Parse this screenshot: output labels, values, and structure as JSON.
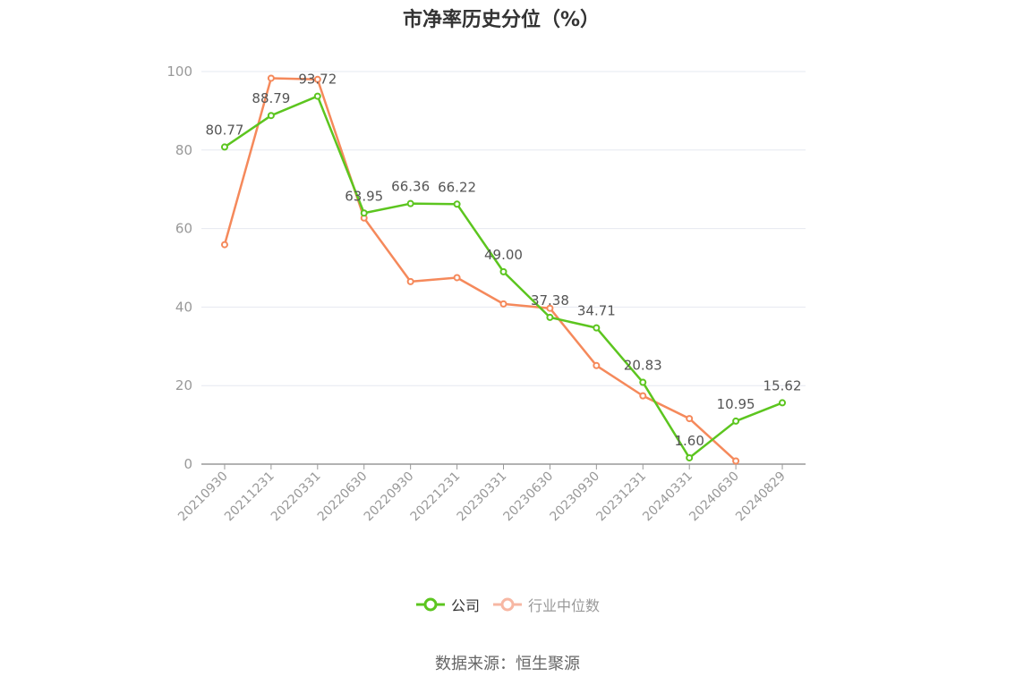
{
  "title": "市净率历史分位（%）",
  "source_text": "数据来源：恒生聚源",
  "legend": {
    "company": "公司",
    "industry": "行业中位数"
  },
  "colors": {
    "company": "#5cc51f",
    "industry": "#f5895b",
    "industry_legend": "#f7b7a3",
    "grid": "#e6e8f0",
    "axis": "#999999"
  },
  "chart_data": {
    "type": "line",
    "title": "市净率历史分位（%）",
    "xlabel": "",
    "ylabel": "",
    "ylim": [
      0,
      100
    ],
    "yticks": [
      0,
      20,
      40,
      60,
      80,
      100
    ],
    "grid": true,
    "legend_position": "bottom",
    "categories": [
      "20210930",
      "20211231",
      "20220331",
      "20220630",
      "20220930",
      "20221231",
      "20230331",
      "20230630",
      "20230930",
      "20231231",
      "20240331",
      "20240630",
      "20240829"
    ],
    "series": [
      {
        "name": "公司",
        "values": [
          80.77,
          88.79,
          93.72,
          63.95,
          66.36,
          66.22,
          49.0,
          37.38,
          34.71,
          20.83,
          1.6,
          10.95,
          15.62
        ],
        "labels": [
          "80.77",
          "88.79",
          "93.72",
          "63.95",
          "66.36",
          "66.22",
          "49.00",
          "37.38",
          "34.71",
          "20.83",
          "1.60",
          "10.95",
          "15.62"
        ]
      },
      {
        "name": "行业中位数",
        "values": [
          55.9,
          98.3,
          98.0,
          62.7,
          46.5,
          47.5,
          40.8,
          39.7,
          25.1,
          17.4,
          11.6,
          0.8,
          null
        ]
      }
    ]
  }
}
